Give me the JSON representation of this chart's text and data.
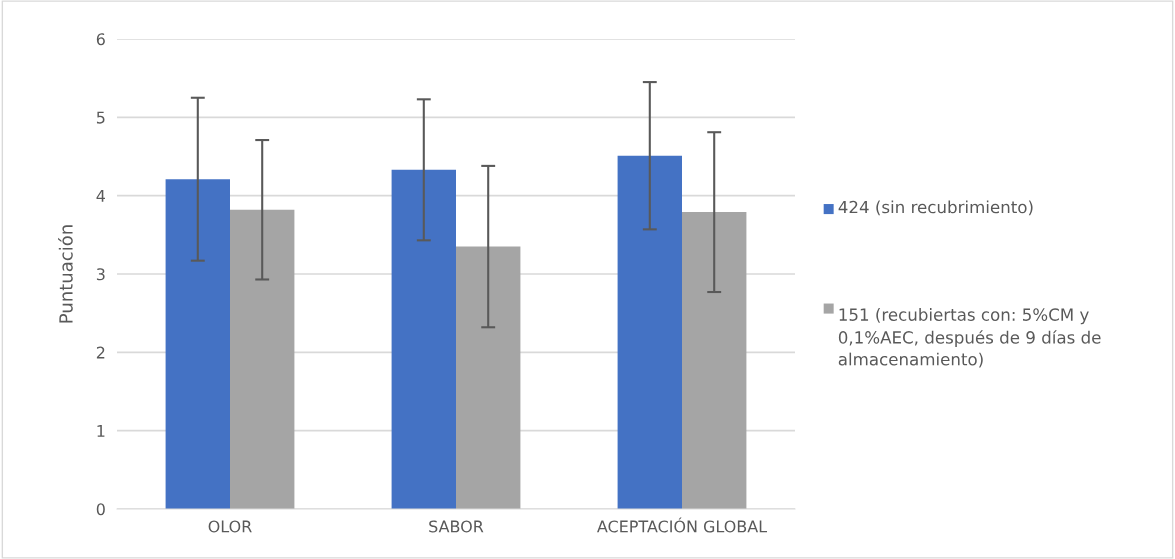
{
  "chart_data": {
    "type": "bar",
    "ylabel": "Puntuación",
    "categories": [
      "OLOR",
      "SABOR",
      "ACEPTACIÓN GLOBAL"
    ],
    "series": [
      {
        "name": "424 (sin recubrimiento)",
        "color": "#4472c4",
        "values": [
          4.21,
          4.33,
          4.51
        ],
        "errors": [
          1.04,
          0.9,
          0.94
        ]
      },
      {
        "name": "151 (recubiertas con: 5%CM y 0,1%AEC, después de 9 días de almacenamiento)",
        "color": "#a5a5a5",
        "values": [
          3.82,
          3.35,
          3.79
        ],
        "errors": [
          0.89,
          1.03,
          1.02
        ]
      }
    ],
    "ylim": [
      0,
      6
    ],
    "yticks": [
      0,
      1,
      2,
      3,
      4,
      5,
      6
    ],
    "grid": "y",
    "legend": "right"
  }
}
